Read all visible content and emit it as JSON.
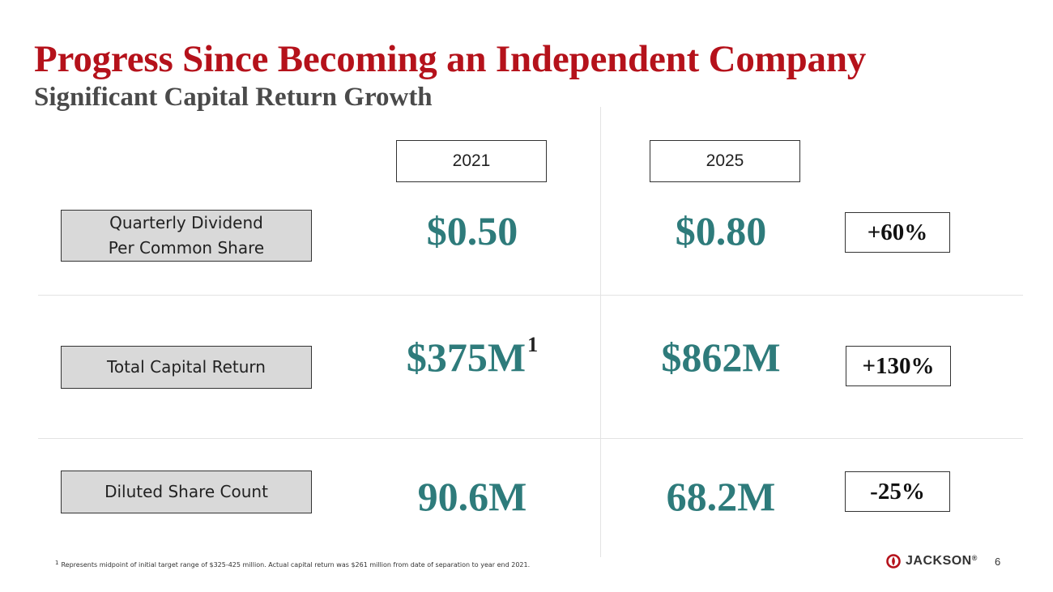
{
  "slide": {
    "title": "Progress Since Becoming an Independent Company",
    "subtitle": "Significant Capital Return Growth",
    "years": [
      "2021",
      "2025"
    ],
    "rows": [
      {
        "label_line1": "Quarterly Dividend",
        "label_line2": "Per Common Share",
        "value_2021": "$0.50",
        "value_2025": "$0.80",
        "change": "+60%"
      },
      {
        "label": "Total Capital Return",
        "value_2021": "$375M",
        "value_2021_footnote": "1",
        "value_2025": "$862M",
        "change": "+130%"
      },
      {
        "label": "Diluted Share Count",
        "value_2021": "90.6M",
        "value_2025": "68.2M",
        "change": "-25%"
      }
    ],
    "footnote_mark": "1",
    "footnote": "Represents midpoint of initial target range of $325-425 million.  Actual capital return was $261 million from date of separation to year end 2021.",
    "logo_text": "JACKSON",
    "logo_mark": "®",
    "page_number": "6"
  },
  "colors": {
    "title": "#b5121b",
    "subtitle": "#4a4a4a",
    "value": "#2e7b7b",
    "label_fill": "#d9d9d9"
  }
}
